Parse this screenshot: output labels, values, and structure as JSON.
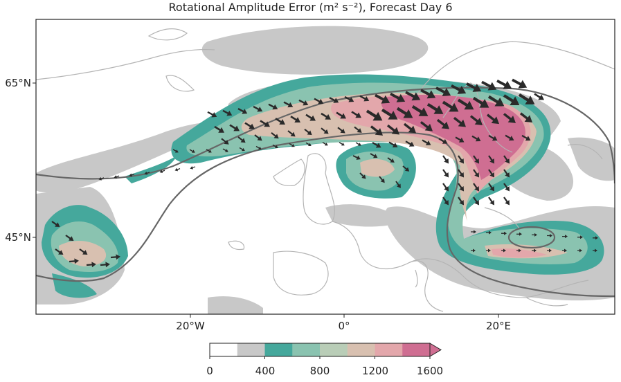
{
  "title": "Rotational Amplitude Error (m² s⁻²), Forecast Day 6",
  "axes": {
    "lon_ticks": [
      "20°W",
      "0°",
      "20°E"
    ],
    "lat_ticks": [
      "65°N",
      "45°N"
    ]
  },
  "colorbar": {
    "ticks": [
      "0",
      "400",
      "800",
      "1200",
      "1600"
    ],
    "levels": [
      0,
      200,
      400,
      600,
      800,
      1000,
      1200,
      1400,
      1600
    ],
    "colors": [
      "#ffffff",
      "#c8c8c8",
      "#45a89c",
      "#8ac3b0",
      "#b9cdb7",
      "#d8c0b0",
      "#e3a7ab",
      "#cf6e92"
    ],
    "extend": "max"
  },
  "colors": {
    "contour_line": "#666666",
    "coastline": "#b4b4b4",
    "vector": "#2a2a2a"
  }
}
